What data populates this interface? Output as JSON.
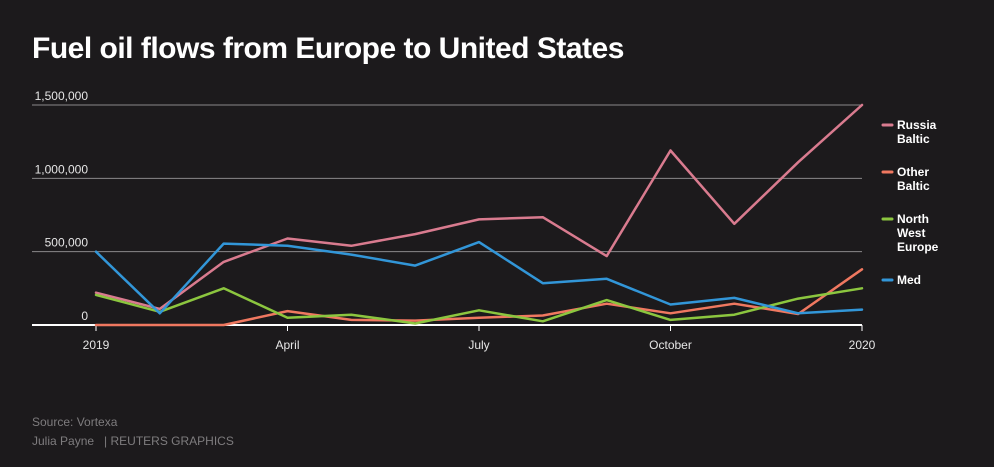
{
  "title": "Fuel oil flows from Europe to United States",
  "footer": {
    "source": "Source: Vortexa",
    "author": "Julia Payne",
    "agency": "| REUTERS GRAPHICS"
  },
  "colors": {
    "background": "#1c1a1c",
    "grid": "#8a888a",
    "text": "#e6e6e6"
  },
  "chart_data": {
    "type": "line",
    "x": [
      "2019-01",
      "2019-02",
      "2019-03",
      "2019-04",
      "2019-05",
      "2019-06",
      "2019-07",
      "2019-08",
      "2019-09",
      "2019-10",
      "2019-11",
      "2019-12",
      "2020-01"
    ],
    "x_tick_labels": [
      {
        "x": "2019-01",
        "label": "2019"
      },
      {
        "x": "2019-04",
        "label": "April"
      },
      {
        "x": "2019-07",
        "label": "July"
      },
      {
        "x": "2019-10",
        "label": "October"
      },
      {
        "x": "2020-01",
        "label": "2020"
      }
    ],
    "y_ticks": [
      0,
      500000,
      1000000,
      1500000
    ],
    "y_tick_labels": [
      "0",
      "500,000",
      "1,000,000",
      "1,500,000"
    ],
    "ylim": [
      0,
      1500000
    ],
    "grid": true,
    "legend_position": "right",
    "series": [
      {
        "name": "Russia Baltic",
        "label_lines": [
          "Russia",
          "Baltic"
        ],
        "color": "#d97b8f",
        "values": [
          220000,
          110000,
          430000,
          590000,
          540000,
          620000,
          720000,
          735000,
          470000,
          1190000,
          690000,
          1110000,
          1500000
        ]
      },
      {
        "name": "Other Baltic",
        "label_lines": [
          "Other",
          "Baltic"
        ],
        "color": "#f07860",
        "values": [
          0,
          0,
          0,
          95000,
          35000,
          30000,
          50000,
          65000,
          145000,
          80000,
          145000,
          75000,
          380000
        ]
      },
      {
        "name": "North West Europe",
        "label_lines": [
          "North",
          "West",
          "Europe"
        ],
        "color": "#8cc63f",
        "values": [
          205000,
          90000,
          250000,
          50000,
          70000,
          10000,
          100000,
          25000,
          170000,
          35000,
          70000,
          180000,
          250000
        ]
      },
      {
        "name": "Med",
        "label_lines": [
          "Med"
        ],
        "color": "#3296d8",
        "values": [
          500000,
          80000,
          555000,
          540000,
          480000,
          405000,
          565000,
          285000,
          315000,
          140000,
          185000,
          80000,
          105000
        ]
      }
    ]
  }
}
